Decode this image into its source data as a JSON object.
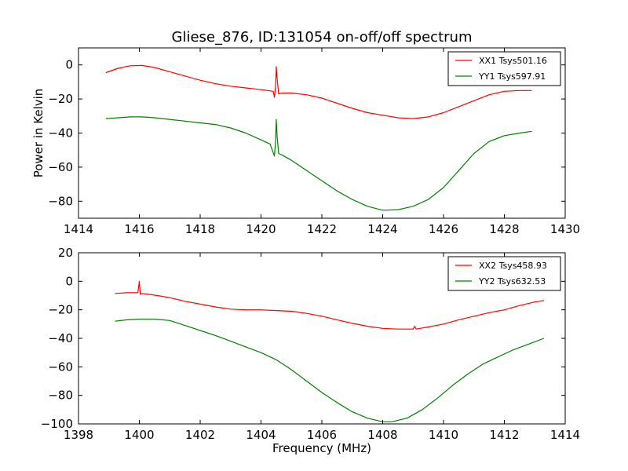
{
  "chart_data": [
    {
      "type": "line",
      "title": "Gliese_876, ID:131054 on-off/off spectrum",
      "xlabel": "",
      "ylabel": "Power in Kelvin",
      "xlim": [
        1414,
        1430
      ],
      "ylim": [
        -90,
        10
      ],
      "xticks": [
        1414,
        1416,
        1418,
        1420,
        1422,
        1424,
        1426,
        1428,
        1430
      ],
      "yticks": [
        -80,
        -60,
        -40,
        -20,
        0
      ],
      "grid": false,
      "legend_position": "top-right",
      "series": [
        {
          "name": "XX1 Tsys501.16",
          "color": "#ff0000",
          "points": [
            [
              1414.9,
              -4.5
            ],
            [
              1415.3,
              -2
            ],
            [
              1415.7,
              -0.5
            ],
            [
              1416.1,
              -0.3
            ],
            [
              1416.5,
              -1.5
            ],
            [
              1417.0,
              -4
            ],
            [
              1417.5,
              -6.5
            ],
            [
              1418.0,
              -9
            ],
            [
              1418.5,
              -11
            ],
            [
              1419.0,
              -12.5
            ],
            [
              1419.5,
              -13.5
            ],
            [
              1420.0,
              -14.5
            ],
            [
              1420.4,
              -15.5
            ],
            [
              1420.44,
              -19
            ],
            [
              1420.48,
              -12
            ],
            [
              1420.5,
              -1
            ],
            [
              1420.53,
              -8
            ],
            [
              1420.58,
              -17
            ],
            [
              1420.7,
              -16.5
            ],
            [
              1421.0,
              -16.5
            ],
            [
              1421.5,
              -17.5
            ],
            [
              1422.0,
              -19.5
            ],
            [
              1422.5,
              -22.5
            ],
            [
              1423.0,
              -25.5
            ],
            [
              1423.5,
              -28
            ],
            [
              1424.0,
              -29.5
            ],
            [
              1424.5,
              -31
            ],
            [
              1425.0,
              -31.5
            ],
            [
              1425.5,
              -30.5
            ],
            [
              1426.0,
              -28
            ],
            [
              1426.5,
              -24.5
            ],
            [
              1427.0,
              -21
            ],
            [
              1427.5,
              -17.5
            ],
            [
              1428.0,
              -15.5
            ],
            [
              1428.5,
              -15
            ],
            [
              1428.9,
              -15
            ]
          ]
        },
        {
          "name": "YY1 Tsys597.91",
          "color": "#008000",
          "points": [
            [
              1414.9,
              -31.5
            ],
            [
              1415.3,
              -31
            ],
            [
              1415.7,
              -30.5
            ],
            [
              1416.1,
              -30.5
            ],
            [
              1416.5,
              -31
            ],
            [
              1417.0,
              -32
            ],
            [
              1417.5,
              -33
            ],
            [
              1418.0,
              -34
            ],
            [
              1418.5,
              -35
            ],
            [
              1419.0,
              -37
            ],
            [
              1419.5,
              -40
            ],
            [
              1420.0,
              -44
            ],
            [
              1420.3,
              -46.5
            ],
            [
              1420.44,
              -53.5
            ],
            [
              1420.48,
              -44
            ],
            [
              1420.5,
              -32
            ],
            [
              1420.53,
              -42
            ],
            [
              1420.58,
              -52
            ],
            [
              1420.7,
              -53
            ],
            [
              1421.0,
              -56
            ],
            [
              1421.5,
              -62
            ],
            [
              1422.0,
              -68
            ],
            [
              1422.5,
              -74
            ],
            [
              1423.0,
              -79
            ],
            [
              1423.5,
              -83
            ],
            [
              1424.0,
              -85.3
            ],
            [
              1424.5,
              -85
            ],
            [
              1425.0,
              -83
            ],
            [
              1425.5,
              -79
            ],
            [
              1426.0,
              -72
            ],
            [
              1426.5,
              -62
            ],
            [
              1427.0,
              -52
            ],
            [
              1427.5,
              -45
            ],
            [
              1428.0,
              -41.5
            ],
            [
              1428.5,
              -40
            ],
            [
              1428.9,
              -39
            ]
          ]
        }
      ]
    },
    {
      "type": "line",
      "title": "",
      "xlabel": "Frequency (MHz)",
      "ylabel": "",
      "xlim": [
        1398,
        1414
      ],
      "ylim": [
        -100,
        20
      ],
      "xticks": [
        1398,
        1400,
        1402,
        1404,
        1406,
        1408,
        1410,
        1412,
        1414
      ],
      "yticks": [
        -100,
        -80,
        -60,
        -40,
        -20,
        0,
        20
      ],
      "grid": false,
      "legend_position": "top-right",
      "series": [
        {
          "name": "XX2 Tsys458.93",
          "color": "#ff0000",
          "points": [
            [
              1399.2,
              -8.5
            ],
            [
              1399.6,
              -8
            ],
            [
              1399.95,
              -8
            ],
            [
              1400.0,
              0
            ],
            [
              1400.03,
              -9
            ],
            [
              1400.1,
              -8.5
            ],
            [
              1400.6,
              -10
            ],
            [
              1401.0,
              -11.5
            ],
            [
              1401.5,
              -14
            ],
            [
              1402.0,
              -16
            ],
            [
              1402.5,
              -18
            ],
            [
              1403.0,
              -19.5
            ],
            [
              1403.5,
              -20
            ],
            [
              1404.0,
              -20
            ],
            [
              1404.5,
              -20.5
            ],
            [
              1405.0,
              -21
            ],
            [
              1405.5,
              -22.5
            ],
            [
              1406.0,
              -24.5
            ],
            [
              1406.5,
              -27
            ],
            [
              1407.0,
              -29.5
            ],
            [
              1407.5,
              -31.5
            ],
            [
              1408.0,
              -33
            ],
            [
              1408.5,
              -33.5
            ],
            [
              1409.0,
              -33.5
            ],
            [
              1409.05,
              -31.5
            ],
            [
              1409.1,
              -33.5
            ],
            [
              1409.5,
              -32
            ],
            [
              1410.0,
              -30
            ],
            [
              1410.5,
              -27
            ],
            [
              1411.0,
              -24.5
            ],
            [
              1411.5,
              -22
            ],
            [
              1412.0,
              -20
            ],
            [
              1412.5,
              -17
            ],
            [
              1413.0,
              -14.5
            ],
            [
              1413.3,
              -13.5
            ]
          ]
        },
        {
          "name": "YY2 Tsys632.53",
          "color": "#008000",
          "points": [
            [
              1399.2,
              -28
            ],
            [
              1399.6,
              -27
            ],
            [
              1400.0,
              -26.5
            ],
            [
              1400.5,
              -26.5
            ],
            [
              1401.0,
              -27.5
            ],
            [
              1401.5,
              -31
            ],
            [
              1402.0,
              -34.5
            ],
            [
              1402.5,
              -38
            ],
            [
              1403.0,
              -42
            ],
            [
              1403.5,
              -46
            ],
            [
              1404.0,
              -50
            ],
            [
              1404.5,
              -55
            ],
            [
              1405.0,
              -62
            ],
            [
              1405.5,
              -70
            ],
            [
              1406.0,
              -78
            ],
            [
              1406.5,
              -85
            ],
            [
              1407.0,
              -91.5
            ],
            [
              1407.5,
              -96
            ],
            [
              1408.0,
              -98.5
            ],
            [
              1408.3,
              -98.5
            ],
            [
              1408.8,
              -96
            ],
            [
              1409.3,
              -90
            ],
            [
              1409.8,
              -82
            ],
            [
              1410.3,
              -73
            ],
            [
              1410.8,
              -65
            ],
            [
              1411.3,
              -58
            ],
            [
              1411.8,
              -53
            ],
            [
              1412.3,
              -48
            ],
            [
              1412.8,
              -44
            ],
            [
              1413.3,
              -40
            ]
          ]
        }
      ]
    }
  ]
}
